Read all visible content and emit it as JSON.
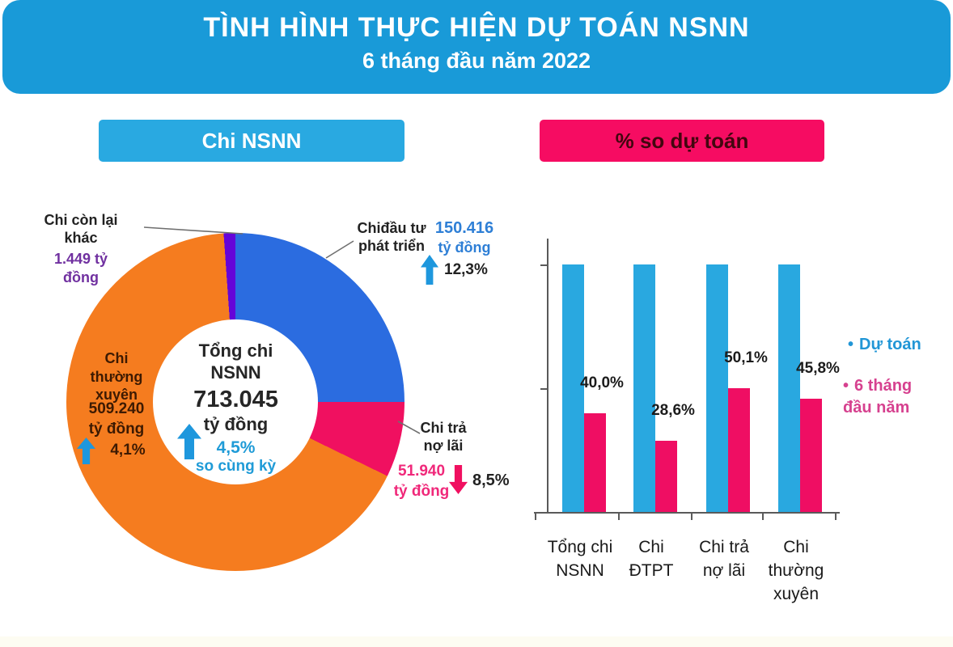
{
  "banner": {
    "title": "TÌNH HÌNH THỰC HIỆN DỰ TOÁN NSNN",
    "subtitle": "6 tháng đầu năm 2022"
  },
  "section_labels": {
    "left": "Chi NSNN",
    "right": "% so dự toán"
  },
  "colors": {
    "banner_blue": "#199ad8",
    "chip_blue": "#29a9e1",
    "chip_pink": "#f60c62",
    "bar_blue": "#29a8e0",
    "bar_pink": "#ef0e63",
    "donut_blue": "#2b6ce0",
    "donut_pink": "#f01060",
    "donut_orange": "#f57c1f",
    "donut_purple": "#6504d8",
    "accent_blue_text": "#1f9bd7",
    "purple_text": "#7030a0"
  },
  "chart_data": [
    {
      "type": "pie",
      "subtype": "donut",
      "title": "Chi NSNN",
      "unit": "tỷ đồng",
      "total": 713045,
      "center": {
        "title": "Tổng chi\nNSNN",
        "value": "713.045",
        "unit": "tỷ đồng",
        "change": "4,5%",
        "change_note": "so cùng kỳ",
        "change_direction": "up"
      },
      "slices": [
        {
          "name": "Chi đầu tư phát triển",
          "label": "Chiđầu tư\nphát triển",
          "value": 150416,
          "value_text": "150.416",
          "unit": "tỷ đồng",
          "pct_of_total": 21.1,
          "change": "12,3%",
          "change_direction": "up",
          "color": "#2b6ce0",
          "display_angle_deg": 90
        },
        {
          "name": "Chi trả nợ lãi",
          "label": "Chi trả\nnợ lãi",
          "value": 51940,
          "value_text": "51.940\ntỷ đồng",
          "pct_of_total": 7.3,
          "change": "8,5%",
          "change_direction": "down",
          "color": "#f01060",
          "display_angle_deg": 26
        },
        {
          "name": "Chi thường xuyên",
          "label": "Chi\nthường\nxuyên",
          "value": 509240,
          "value_text": "509.240\ntỷ đồng",
          "pct_of_total": 71.4,
          "change": "4,1%",
          "change_direction": "up",
          "color": "#f57c1f",
          "display_angle_deg": 240
        },
        {
          "name": "Chi còn lại khác",
          "label": "Chi còn lại\nkhác",
          "value": 1449,
          "value_text": "1.449 tỷ\nđồng",
          "pct_of_total": 0.2,
          "color": "#6504d8",
          "display_angle_deg": 4
        }
      ]
    },
    {
      "type": "bar",
      "title": "% so dự toán",
      "categories": [
        "Tổng chi\nNSNN",
        "Chi\nĐTPT",
        "Chi trả\nnợ lãi",
        "Chi\nthường\nxuyên"
      ],
      "series": [
        {
          "name": "Dự toán",
          "values": [
            100,
            100,
            100,
            100
          ],
          "color": "#29a8e0"
        },
        {
          "name": "6 tháng đầu năm",
          "values": [
            40.0,
            28.6,
            50.1,
            45.8
          ],
          "labels": [
            "40,0%",
            "28,6%",
            "50,1%",
            "45,8%"
          ],
          "color": "#ef0e63"
        }
      ],
      "ylim": [
        0,
        100
      ],
      "yticks": [
        50,
        100
      ],
      "grid": false,
      "legend_position": "right",
      "legend": [
        {
          "bullet": "•",
          "label": "Dự toán",
          "color": "#2196d6"
        },
        {
          "bullet": "•",
          "label": "6 tháng\nđầu năm",
          "color": "#d6418f"
        }
      ]
    }
  ]
}
